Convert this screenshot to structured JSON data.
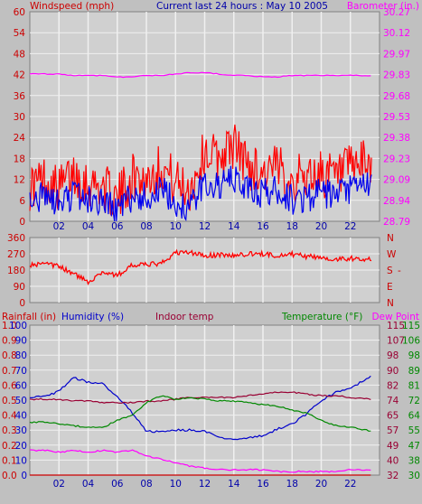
{
  "header": {
    "windspeed_label": "Windspeed (mph)",
    "title": "Current last 24 hours : May 10 2005",
    "barometer_label": "Barometer (in.)"
  },
  "lower_header": {
    "rainfall_label": "Rainfall (in)",
    "humidity_label": "Humidity (%)",
    "indoor_label": "Indoor temp",
    "temperature_label": "Temperature (°F)",
    "dewpoint_label": "Dew Point"
  },
  "colors": {
    "background": "#c0c0c0",
    "plot_bg": "#d0d0d0",
    "grid": "#f0f0f0",
    "wind_gust": "#ff0000",
    "wind_avg": "#0000ee",
    "barometer": "#ff00ff",
    "direction": "#ff0000",
    "humidity": "#0000cc",
    "indoor": "#990033",
    "temperature": "#008800",
    "dewpoint": "#ff00ff",
    "rainfall": "#cc0000",
    "title_blue": "#0000aa",
    "label_red": "#cc0000"
  },
  "chart_data": [
    {
      "type": "line",
      "name": "wind-barometer",
      "x_ticks": [
        "02",
        "04",
        "06",
        "08",
        "10",
        "12",
        "14",
        "16",
        "18",
        "20",
        "22"
      ],
      "x_range": [
        0,
        24
      ],
      "left_axis": {
        "label": "Windspeed (mph)",
        "range": [
          0,
          60
        ],
        "ticks": [
          "0",
          "6",
          "12",
          "18",
          "24",
          "30",
          "36",
          "42",
          "48",
          "54",
          "60"
        ]
      },
      "right_axis": {
        "label": "Barometer (in.)",
        "range": [
          28.79,
          30.27
        ],
        "ticks": [
          "28.79",
          "28.94",
          "29.09",
          "29.23",
          "29.38",
          "29.53",
          "29.68",
          "29.83",
          "29.97",
          "30.12",
          "30.27"
        ]
      },
      "series": [
        {
          "key": "gust",
          "axis": "left",
          "x": [
            0,
            1,
            2,
            3,
            4,
            5,
            6,
            7,
            8,
            9,
            10,
            11,
            12,
            13,
            14,
            15,
            16,
            17,
            18,
            19,
            20,
            21,
            22,
            23.5
          ],
          "values": [
            10,
            12,
            9,
            14,
            11,
            10,
            6,
            13,
            12,
            16,
            11,
            9,
            20,
            18,
            22,
            16,
            14,
            15,
            12,
            13,
            14,
            12,
            15,
            17
          ]
        },
        {
          "key": "average",
          "axis": "left",
          "x": [
            0,
            1,
            2,
            3,
            4,
            5,
            6,
            7,
            8,
            9,
            10,
            11,
            12,
            13,
            14,
            15,
            16,
            17,
            18,
            19,
            20,
            21,
            22,
            23.5
          ],
          "values": [
            6,
            7,
            5,
            8,
            6,
            6,
            3,
            7,
            7,
            9,
            5,
            4,
            11,
            10,
            12,
            9,
            8,
            9,
            6,
            7,
            8,
            7,
            9,
            11
          ]
        },
        {
          "key": "barometer",
          "axis": "right",
          "x": [
            0,
            1,
            2,
            3,
            4,
            5,
            6,
            7,
            8,
            9,
            10,
            11,
            12,
            13,
            14,
            15,
            16,
            17,
            18,
            19,
            20,
            21,
            22,
            23.5
          ],
          "values": [
            29.83,
            29.83,
            29.83,
            29.82,
            29.82,
            29.82,
            29.81,
            29.81,
            29.82,
            29.82,
            29.83,
            29.84,
            29.84,
            29.83,
            29.82,
            29.82,
            29.81,
            29.81,
            29.82,
            29.82,
            29.82,
            29.82,
            29.82,
            29.82
          ]
        }
      ]
    },
    {
      "type": "scatter",
      "name": "wind-direction",
      "x_range": [
        0,
        24
      ],
      "left_axis": {
        "range": [
          0,
          360
        ],
        "ticks": [
          "0",
          "90",
          "180",
          "270",
          "360"
        ]
      },
      "right_axis": {
        "ticks": [
          "N",
          "W",
          "S",
          "E",
          "N"
        ]
      },
      "separator_label": "-",
      "series": [
        {
          "key": "direction",
          "x": [
            0,
            1,
            2,
            3,
            4,
            5,
            6,
            7,
            8,
            9,
            10,
            11,
            12,
            13,
            14,
            15,
            16,
            17,
            18,
            19,
            20,
            21,
            22,
            23.5
          ],
          "values": [
            210,
            212,
            200,
            160,
            115,
            170,
            150,
            205,
            210,
            215,
            275,
            278,
            258,
            265,
            260,
            270,
            268,
            262,
            268,
            255,
            250,
            240,
            245,
            242
          ]
        }
      ]
    },
    {
      "type": "line",
      "name": "temperature-humidity",
      "x_range": [
        0,
        24
      ],
      "rainfall_axis": {
        "range": [
          0,
          1
        ],
        "ticks": [
          "0.0",
          "0.1",
          "0.2",
          "0.3",
          "0.4",
          "0.5",
          "0.6",
          "0.7",
          "0.8",
          "0.9",
          "1.0"
        ]
      },
      "humidity_axis": {
        "range": [
          0,
          100
        ],
        "ticks": [
          "0",
          "10",
          "20",
          "30",
          "40",
          "50",
          "60",
          "70",
          "80",
          "90",
          "100"
        ]
      },
      "temperature_axis_left": {
        "ticks": [
          "32",
          "40",
          "49",
          "57",
          "65",
          "74",
          "82",
          "90",
          "98",
          "107",
          "115"
        ]
      },
      "temperature_axis_right": {
        "range": [
          30,
          115
        ],
        "ticks": [
          "30",
          "38",
          "47",
          "55",
          "64",
          "72",
          "81",
          "89",
          "98",
          "106",
          "115"
        ]
      },
      "series": [
        {
          "key": "humidity",
          "axis": "humidity",
          "x": [
            0,
            1,
            2,
            3,
            4,
            5,
            6,
            7,
            8,
            9,
            10,
            11,
            12,
            13,
            14,
            15,
            16,
            17,
            18,
            19,
            20,
            21,
            22,
            23.5
          ],
          "values": [
            52,
            52,
            56,
            65,
            62,
            61,
            52,
            42,
            29,
            29,
            30,
            30,
            29,
            25,
            24,
            25,
            26,
            31,
            34,
            41,
            50,
            55,
            58,
            66
          ]
        },
        {
          "key": "indoor",
          "axis": "temperature_right",
          "x": [
            0,
            1,
            2,
            3,
            4,
            5,
            6,
            7,
            8,
            9,
            10,
            11,
            12,
            13,
            14,
            15,
            16,
            17,
            18,
            19,
            20,
            21,
            22,
            23.5
          ],
          "values": [
            73,
            73,
            73,
            72,
            72,
            71,
            71,
            71,
            72,
            72,
            73,
            74,
            74,
            74,
            74,
            75,
            76,
            77,
            77,
            76,
            75,
            75,
            74,
            73
          ]
        },
        {
          "key": "temperature",
          "axis": "temperature_right",
          "x": [
            0,
            1,
            2,
            3,
            4,
            5,
            6,
            7,
            8,
            9,
            10,
            11,
            12,
            13,
            14,
            15,
            16,
            17,
            18,
            19,
            20,
            21,
            22,
            23.5
          ],
          "values": [
            60,
            60,
            59,
            58,
            57,
            57,
            61,
            64,
            71,
            75,
            73,
            74,
            73,
            72,
            72,
            71,
            70,
            69,
            67,
            65,
            61,
            58,
            57,
            55
          ]
        },
        {
          "key": "dewpoint",
          "axis": "temperature_right",
          "x": [
            0,
            1,
            2,
            3,
            4,
            5,
            6,
            7,
            8,
            9,
            10,
            11,
            12,
            13,
            14,
            15,
            16,
            17,
            18,
            19,
            20,
            21,
            22,
            23.5
          ],
          "values": [
            44,
            44,
            43,
            44,
            43,
            44,
            43,
            44,
            41,
            39,
            37,
            35,
            34,
            33,
            33,
            33,
            33,
            32,
            32,
            32,
            32,
            32,
            33,
            33
          ]
        },
        {
          "key": "rainfall",
          "axis": "rainfall",
          "x": [
            0,
            23.5
          ],
          "values": [
            0,
            0
          ]
        }
      ]
    }
  ]
}
